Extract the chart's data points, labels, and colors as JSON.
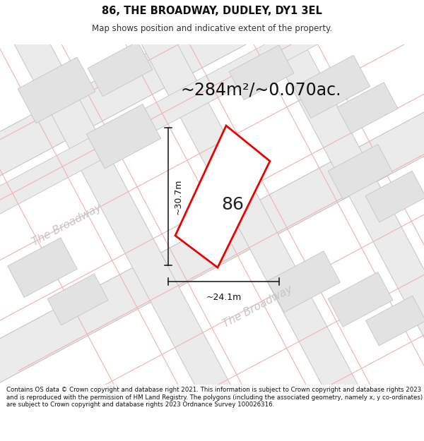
{
  "title": "86, THE BROADWAY, DUDLEY, DY1 3EL",
  "subtitle": "Map shows position and indicative extent of the property.",
  "area_label": "~284m²/~0.070ac.",
  "number_label": "86",
  "dim_width_label": "~24.1m",
  "dim_height_label": "~30.7m",
  "footer": "Contains OS data © Crown copyright and database right 2021. This information is subject to Crown copyright and database rights 2023 and is reproduced with the permission of HM Land Registry. The polygons (including the associated geometry, namely x, y co-ordinates) are subject to Crown copyright and database rights 2023 Ordnance Survey 100026316.",
  "bg_color": "#ffffff",
  "map_bg": "#f8f8f8",
  "road_fill": "#ebebeb",
  "road_edge": "#c8c8c8",
  "pink_line": "#f0b0b0",
  "building_fill": "#e0e0e0",
  "building_edge": "#c0c0c0",
  "plot_color": "#ee0000",
  "plot_fill": "#ffffff",
  "dim_color": "#222222",
  "road_label_color": "#c0c0c0",
  "title_fontsize": 10.5,
  "subtitle_fontsize": 8.5,
  "area_fontsize": 17,
  "number_fontsize": 18,
  "dim_fontsize": 9,
  "road_label_fontsize": 11,
  "footer_fontsize": 6.2
}
